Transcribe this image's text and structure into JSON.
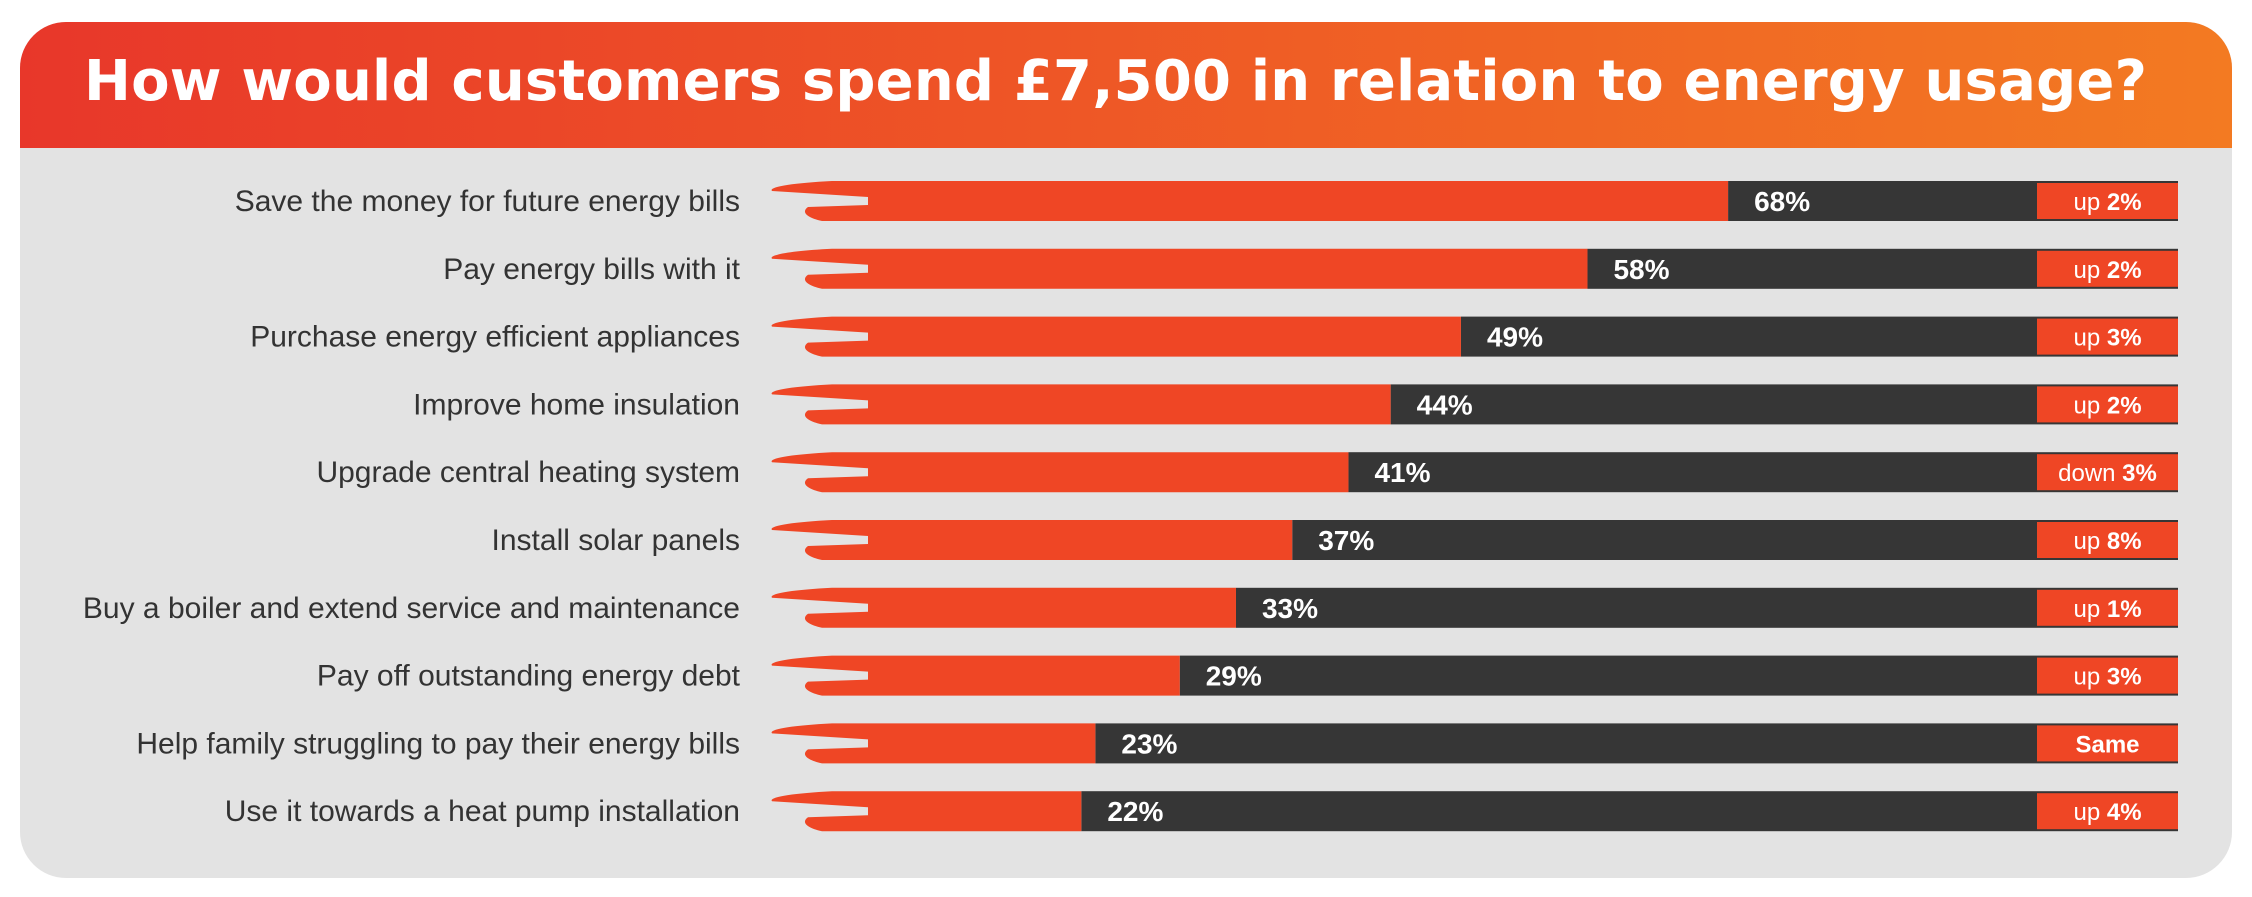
{
  "chart_data": {
    "type": "bar",
    "orientation": "horizontal",
    "stacked_to_100": true,
    "title": "How would customers spend £7,500 in relation to energy usage?",
    "categories": [
      "Save the money for future energy bills",
      "Pay energy bills with it",
      "Purchase energy efficient appliances",
      "Improve home insulation",
      "Upgrade central heating system",
      "Install solar panels",
      "Buy a boiler and extend service and maintenance",
      "Pay off outstanding energy debt",
      "Help family struggling to pay their energy bills",
      "Use it towards a heat pump installation"
    ],
    "values": [
      68,
      58,
      49,
      44,
      41,
      37,
      33,
      29,
      23,
      22
    ],
    "value_labels": [
      "68%",
      "58%",
      "49%",
      "44%",
      "41%",
      "37%",
      "33%",
      "29%",
      "23%",
      "22%"
    ],
    "xlim": [
      0,
      100
    ],
    "changes": [
      {
        "word": "up",
        "amount": "2%"
      },
      {
        "word": "up",
        "amount": "2%"
      },
      {
        "word": "up",
        "amount": "3%"
      },
      {
        "word": "up",
        "amount": "2%"
      },
      {
        "word": "down",
        "amount": "3%"
      },
      {
        "word": "up",
        "amount": "8%"
      },
      {
        "word": "up",
        "amount": "1%"
      },
      {
        "word": "up",
        "amount": "3%"
      },
      {
        "word": "",
        "amount": "Same"
      },
      {
        "word": "up",
        "amount": "4%"
      }
    ],
    "colors": {
      "bar": "#ef4625",
      "remainder": "#363636",
      "badge": "#ef4625",
      "header_start": "#e8372a",
      "header_end": "#f37a22",
      "background": "#e3e3e3"
    },
    "grid": false,
    "legend": "none"
  }
}
